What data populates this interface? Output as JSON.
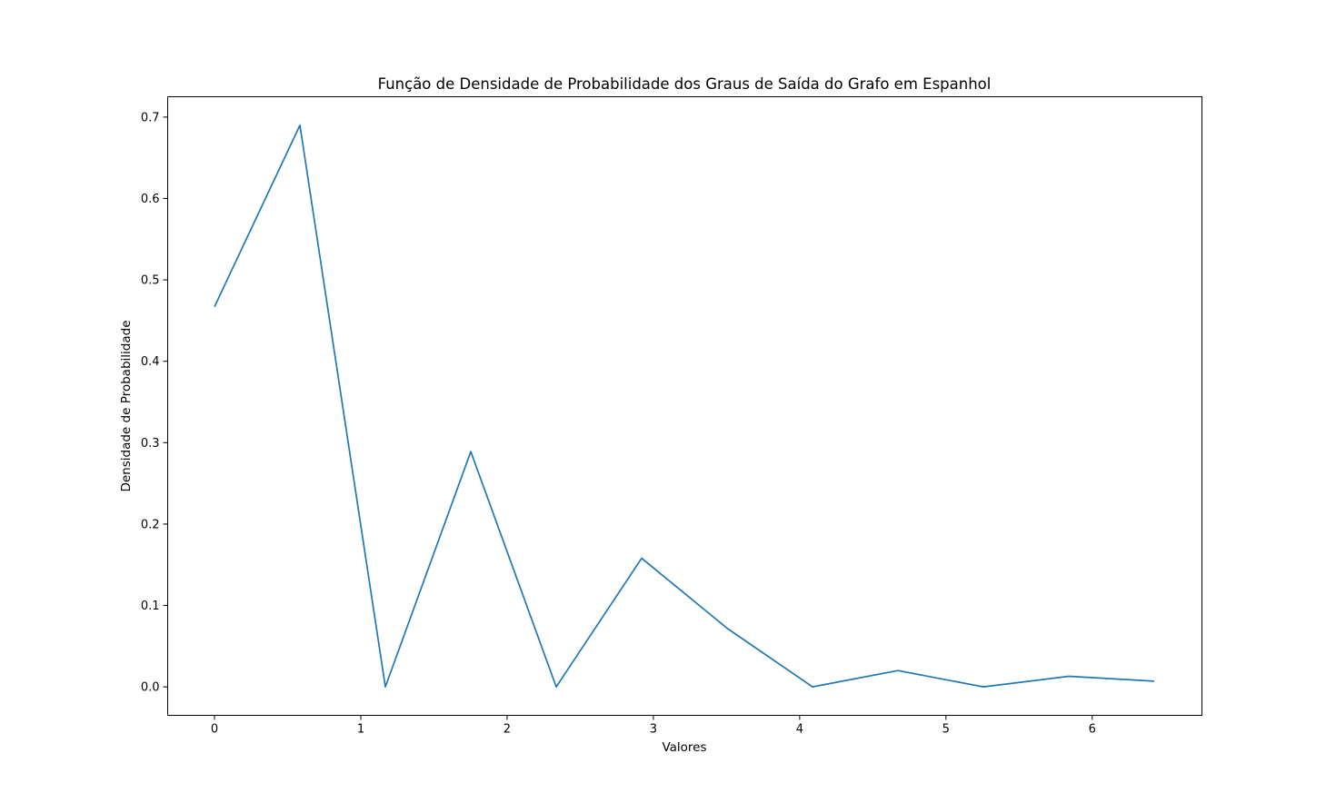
{
  "chart_data": {
    "type": "line",
    "title": "Função de Densidade de Probabilidade dos Graus de Saída do Grafo em Espanhol",
    "xlabel": "Valores",
    "ylabel": "Densidade de Probabilidade",
    "xlim": [
      -0.32,
      6.75
    ],
    "ylim": [
      -0.035,
      0.725
    ],
    "xticks": [
      0,
      1,
      2,
      3,
      4,
      5,
      6
    ],
    "xtick_labels": [
      "0",
      "1",
      "2",
      "3",
      "4",
      "5",
      "6"
    ],
    "yticks": [
      0.0,
      0.1,
      0.2,
      0.3,
      0.4,
      0.5,
      0.6,
      0.7
    ],
    "ytick_labels": [
      "0.0",
      "0.1",
      "0.2",
      "0.3",
      "0.4",
      "0.5",
      "0.6",
      "0.7"
    ],
    "grid": false,
    "line_color": "#1f77b4",
    "x": [
      0.0,
      0.584,
      1.168,
      1.752,
      2.336,
      2.92,
      3.504,
      4.088,
      4.672,
      5.256,
      5.84,
      6.424
    ],
    "y": [
      0.467,
      0.69,
      0.0,
      0.289,
      0.0,
      0.158,
      0.072,
      0.0,
      0.02,
      0.0,
      0.013,
      0.007
    ]
  }
}
